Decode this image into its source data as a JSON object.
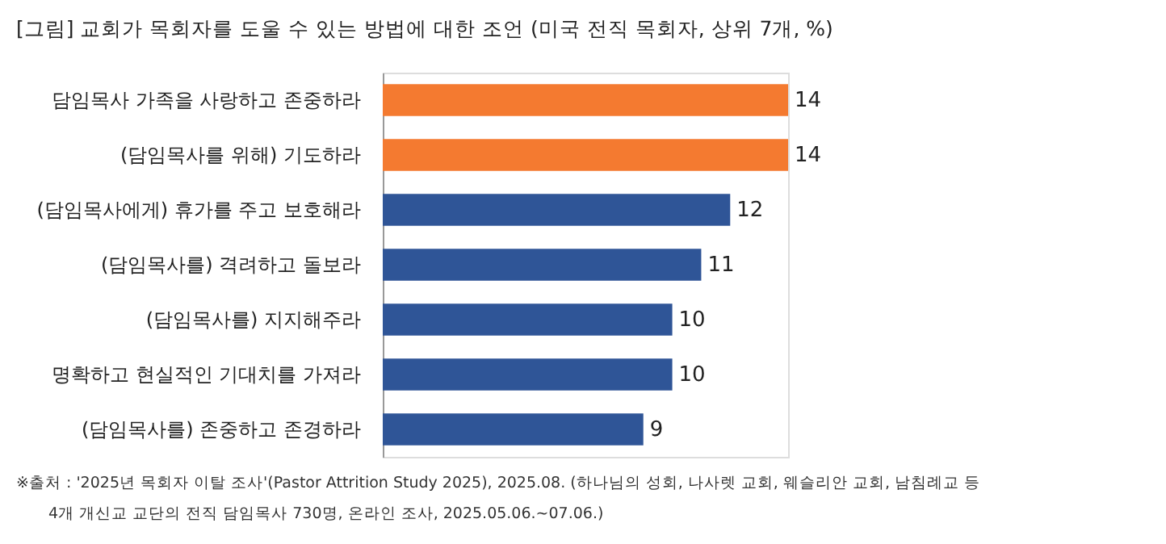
{
  "chart_data": {
    "type": "bar",
    "orientation": "horizontal",
    "title": "[그림] 교회가 목회자를 도울 수 있는 방법에 대한 조언 (미국 전직 목회자, 상위 7개, %)",
    "categories": [
      "담임목사 가족을 사랑하고 존중하라",
      "(담임목사를 위해) 기도하라",
      "(담임목사에게) 휴가를 주고 보호해라",
      "(담임목사를) 격려하고 돌보라",
      "(담임목사를) 지지해주라",
      "명확하고 현실적인 기대치를 가져라",
      "(담임목사를) 존중하고 존경하라"
    ],
    "values": [
      14,
      14,
      12,
      11,
      10,
      10,
      9
    ],
    "colors": [
      "#f47a30",
      "#f47a30",
      "#2f5597",
      "#2f5597",
      "#2f5597",
      "#2f5597",
      "#2f5597"
    ],
    "data_labels": true,
    "annotations": [
      "※출처 : '2025년 목회자 이탈 조사'(Pastor Attrition Study 2025), 2025.08. (하나님의 성회, 나사렛 교회, 웨슬리안 교회, 남침례교 등",
      "4개 개신교 교단의 전직 담임목사 730명, 온라인 조사, 2025.05.06.~07.06.)"
    ]
  }
}
